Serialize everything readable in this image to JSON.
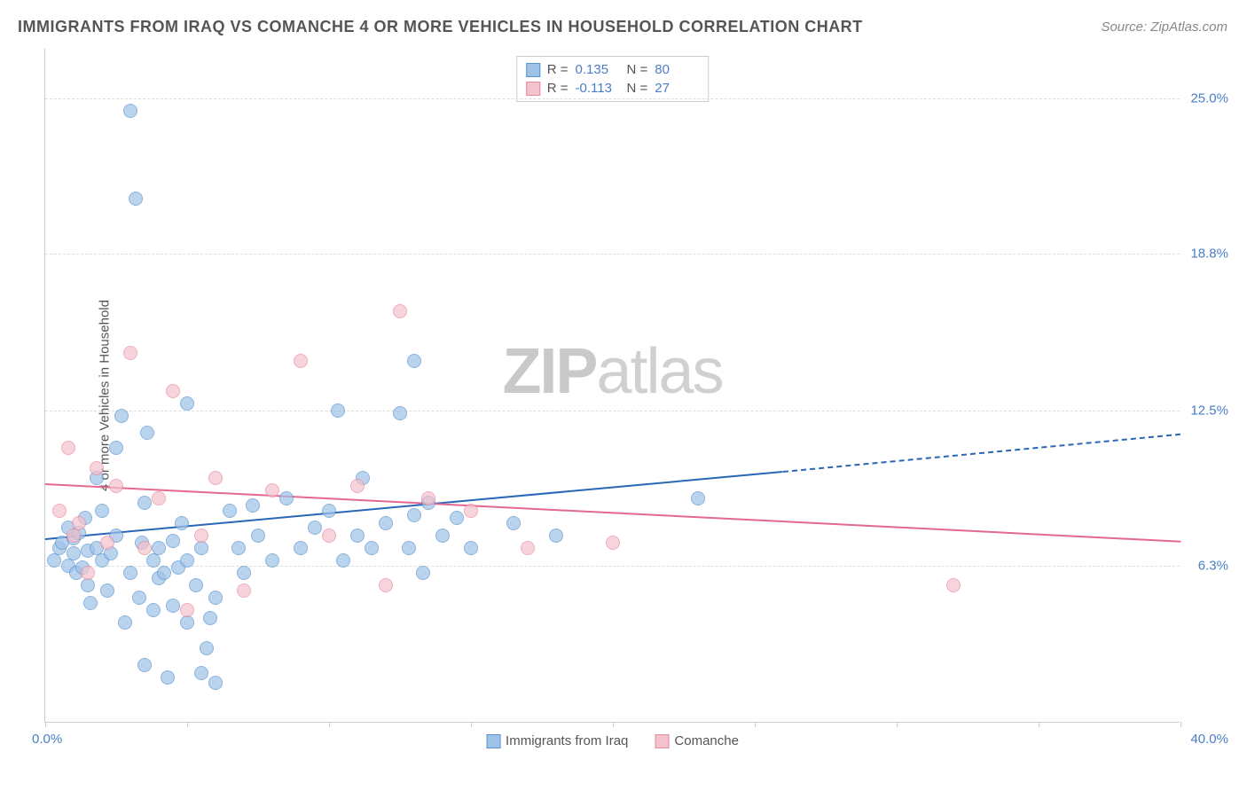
{
  "title": "IMMIGRANTS FROM IRAQ VS COMANCHE 4 OR MORE VEHICLES IN HOUSEHOLD CORRELATION CHART",
  "source": "Source: ZipAtlas.com",
  "ylabel": "4 or more Vehicles in Household",
  "watermark_bold": "ZIP",
  "watermark_rest": "atlas",
  "chart": {
    "type": "scatter",
    "background_color": "#ffffff",
    "grid_color": "#dddddd",
    "axis_color": "#cccccc",
    "label_color": "#555555",
    "tick_color": "#4a7ec7",
    "title_fontsize": 18,
    "label_fontsize": 15,
    "xlim": [
      0,
      40
    ],
    "ylim": [
      0,
      27
    ],
    "x_min_label": "0.0%",
    "x_max_label": "40.0%",
    "y_ticks": [
      {
        "val": 6.3,
        "label": "6.3%"
      },
      {
        "val": 12.5,
        "label": "12.5%"
      },
      {
        "val": 18.8,
        "label": "18.8%"
      },
      {
        "val": 25.0,
        "label": "25.0%"
      }
    ],
    "x_tick_positions": [
      0,
      5,
      10,
      15,
      20,
      25,
      30,
      35,
      40
    ],
    "point_radius": 8,
    "point_border_width": 1.5,
    "point_fill_opacity": 0.35,
    "line_width": 2
  },
  "series": [
    {
      "name": "Immigrants from Iraq",
      "color_fill": "#9fc2e8",
      "color_stroke": "#5a93d0",
      "line_color": "#2a66b8",
      "r_label": "R =",
      "r_value": "0.135",
      "n_label": "N =",
      "n_value": "80",
      "trend": {
        "x1": 0,
        "y1": 7.4,
        "x2": 26,
        "y2": 10.1,
        "x2_dash": 40,
        "y2_dash": 11.6
      },
      "points": [
        [
          0.3,
          6.5
        ],
        [
          0.5,
          7.0
        ],
        [
          0.6,
          7.2
        ],
        [
          0.8,
          6.3
        ],
        [
          0.8,
          7.8
        ],
        [
          1.0,
          6.8
        ],
        [
          1.0,
          7.4
        ],
        [
          1.1,
          6.0
        ],
        [
          1.2,
          7.6
        ],
        [
          1.3,
          6.2
        ],
        [
          1.4,
          8.2
        ],
        [
          1.5,
          5.5
        ],
        [
          1.5,
          6.9
        ],
        [
          1.6,
          4.8
        ],
        [
          1.8,
          7.0
        ],
        [
          1.8,
          9.8
        ],
        [
          2.0,
          6.5
        ],
        [
          2.0,
          8.5
        ],
        [
          2.2,
          5.3
        ],
        [
          2.3,
          6.8
        ],
        [
          2.5,
          7.5
        ],
        [
          2.5,
          11.0
        ],
        [
          2.7,
          12.3
        ],
        [
          2.8,
          4.0
        ],
        [
          3.0,
          24.5
        ],
        [
          3.0,
          6.0
        ],
        [
          3.2,
          21.0
        ],
        [
          3.3,
          5.0
        ],
        [
          3.4,
          7.2
        ],
        [
          3.5,
          2.3
        ],
        [
          3.5,
          8.8
        ],
        [
          3.6,
          11.6
        ],
        [
          3.8,
          4.5
        ],
        [
          3.8,
          6.5
        ],
        [
          4.0,
          5.8
        ],
        [
          4.0,
          7.0
        ],
        [
          4.2,
          6.0
        ],
        [
          4.3,
          1.8
        ],
        [
          4.5,
          4.7
        ],
        [
          4.5,
          7.3
        ],
        [
          4.7,
          6.2
        ],
        [
          4.8,
          8.0
        ],
        [
          5.0,
          4.0
        ],
        [
          5.0,
          6.5
        ],
        [
          5.0,
          12.8
        ],
        [
          5.3,
          5.5
        ],
        [
          5.5,
          2.0
        ],
        [
          5.5,
          7.0
        ],
        [
          5.7,
          3.0
        ],
        [
          5.8,
          4.2
        ],
        [
          6.0,
          1.6
        ],
        [
          6.0,
          5.0
        ],
        [
          6.5,
          8.5
        ],
        [
          6.8,
          7.0
        ],
        [
          7.0,
          6.0
        ],
        [
          7.3,
          8.7
        ],
        [
          7.5,
          7.5
        ],
        [
          8.0,
          6.5
        ],
        [
          8.5,
          9.0
        ],
        [
          9.0,
          7.0
        ],
        [
          9.5,
          7.8
        ],
        [
          10.0,
          8.5
        ],
        [
          10.3,
          12.5
        ],
        [
          10.5,
          6.5
        ],
        [
          11.0,
          7.5
        ],
        [
          11.2,
          9.8
        ],
        [
          11.5,
          7.0
        ],
        [
          12.0,
          8.0
        ],
        [
          12.5,
          12.4
        ],
        [
          12.8,
          7.0
        ],
        [
          13.0,
          8.3
        ],
        [
          13.0,
          14.5
        ],
        [
          13.3,
          6.0
        ],
        [
          13.5,
          8.8
        ],
        [
          14.0,
          7.5
        ],
        [
          14.5,
          8.2
        ],
        [
          15.0,
          7.0
        ],
        [
          16.5,
          8.0
        ],
        [
          18.0,
          7.5
        ],
        [
          23.0,
          9.0
        ]
      ]
    },
    {
      "name": "Comanche",
      "color_fill": "#f4c2cd",
      "color_stroke": "#e78aa0",
      "line_color": "#e56890",
      "r_label": "R =",
      "r_value": "-0.113",
      "n_label": "N =",
      "n_value": "27",
      "trend": {
        "x1": 0,
        "y1": 9.6,
        "x2": 40,
        "y2": 7.3
      },
      "points": [
        [
          0.5,
          8.5
        ],
        [
          0.8,
          11.0
        ],
        [
          1.0,
          7.5
        ],
        [
          1.2,
          8.0
        ],
        [
          1.5,
          6.0
        ],
        [
          1.8,
          10.2
        ],
        [
          2.2,
          7.2
        ],
        [
          2.5,
          9.5
        ],
        [
          3.0,
          14.8
        ],
        [
          3.5,
          7.0
        ],
        [
          4.0,
          9.0
        ],
        [
          4.5,
          13.3
        ],
        [
          5.0,
          4.5
        ],
        [
          5.5,
          7.5
        ],
        [
          6.0,
          9.8
        ],
        [
          7.0,
          5.3
        ],
        [
          8.0,
          9.3
        ],
        [
          9.0,
          14.5
        ],
        [
          10.0,
          7.5
        ],
        [
          11.0,
          9.5
        ],
        [
          12.0,
          5.5
        ],
        [
          12.5,
          16.5
        ],
        [
          15.0,
          8.5
        ],
        [
          17.0,
          7.0
        ],
        [
          20.0,
          7.2
        ],
        [
          32.0,
          5.5
        ],
        [
          13.5,
          9.0
        ]
      ]
    }
  ],
  "legend": {
    "item1": "Immigrants from Iraq",
    "item2": "Comanche"
  }
}
